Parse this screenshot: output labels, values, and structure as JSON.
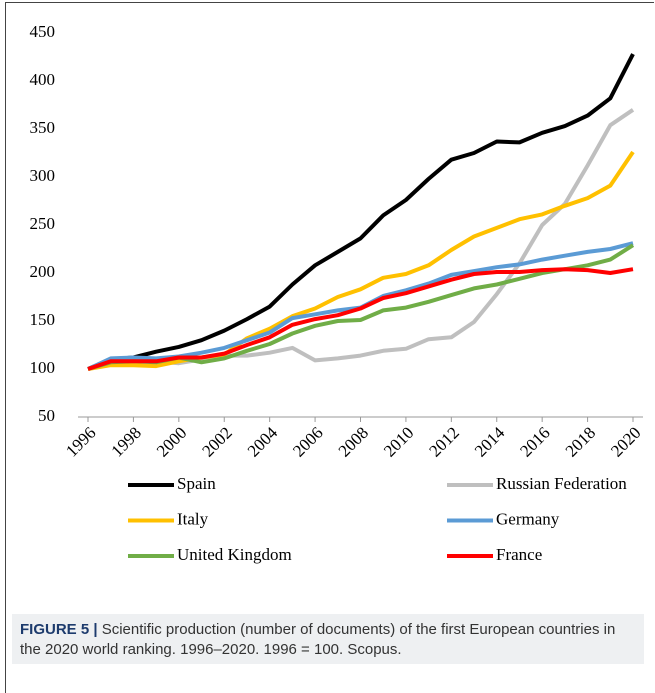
{
  "chart_data": {
    "type": "line",
    "caption_label": "FIGURE 5 |",
    "caption": "Scientific production (number of documents) of the first European countries in the 2020 world ranking. 1996–2020. 1996 = 100. Scopus.",
    "x": [
      1996,
      1997,
      1998,
      1999,
      2000,
      2001,
      2002,
      2003,
      2004,
      2005,
      2006,
      2007,
      2008,
      2009,
      2010,
      2011,
      2012,
      2013,
      2014,
      2015,
      2016,
      2017,
      2018,
      2019,
      2020
    ],
    "xlim": [
      1996,
      2020
    ],
    "xticks": [
      1996,
      1998,
      2000,
      2002,
      2004,
      2006,
      2008,
      2010,
      2012,
      2014,
      2016,
      2018,
      2020
    ],
    "ylim": [
      50,
      450
    ],
    "yticks": [
      50,
      100,
      150,
      200,
      250,
      300,
      350,
      400,
      450
    ],
    "grid": false,
    "legend": "bottom",
    "series": [
      {
        "name": "Spain",
        "color": "#000000",
        "values": [
          100,
          110,
          112,
          118,
          123,
          130,
          140,
          152,
          165,
          188,
          208,
          222,
          236,
          260,
          276,
          298,
          318,
          325,
          337,
          336,
          346,
          353,
          364,
          382,
          428
        ]
      },
      {
        "name": "Russian Federation",
        "color": "#bfbfbf",
        "values": [
          100,
          108,
          110,
          108,
          106,
          110,
          114,
          114,
          117,
          122,
          109,
          111,
          114,
          119,
          121,
          131,
          133,
          149,
          178,
          210,
          250,
          272,
          312,
          354,
          370
        ]
      },
      {
        "name": "Italy",
        "color": "#ffc000",
        "values": [
          100,
          104,
          104,
          103,
          108,
          112,
          115,
          132,
          142,
          155,
          163,
          175,
          183,
          195,
          199,
          208,
          224,
          238,
          247,
          256,
          261,
          270,
          278,
          291,
          326
        ]
      },
      {
        "name": "Germany",
        "color": "#5b9bd5",
        "values": [
          100,
          111,
          112,
          111,
          113,
          117,
          122,
          130,
          138,
          153,
          157,
          161,
          164,
          176,
          182,
          189,
          198,
          202,
          206,
          209,
          214,
          218,
          222,
          225,
          231
        ]
      },
      {
        "name": "United Kingdom",
        "color": "#70ad47",
        "values": [
          100,
          107,
          108,
          107,
          112,
          107,
          111,
          119,
          126,
          137,
          145,
          150,
          151,
          161,
          164,
          170,
          177,
          184,
          188,
          194,
          200,
          204,
          208,
          214,
          229
        ]
      },
      {
        "name": "France",
        "color": "#ff0000",
        "values": [
          100,
          108,
          108,
          108,
          112,
          112,
          116,
          125,
          133,
          146,
          152,
          156,
          163,
          174,
          179,
          186,
          193,
          199,
          201,
          201,
          203,
          204,
          203,
          200,
          204
        ]
      }
    ]
  }
}
